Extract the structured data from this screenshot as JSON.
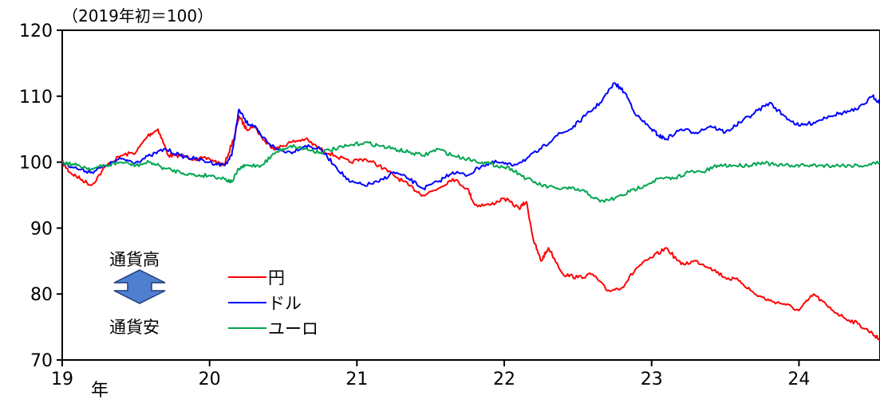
{
  "chart_data": {
    "type": "line",
    "unit_note": "（2019年初＝100）",
    "x_tick_labels": [
      "19",
      "20",
      "21",
      "22",
      "23",
      "24"
    ],
    "x_unit": "年",
    "xlim": [
      2019.0,
      2024.55
    ],
    "ylim": [
      70,
      120
    ],
    "y_ticks": [
      70,
      80,
      90,
      100,
      110,
      120
    ],
    "grid": false,
    "legend_position": "lower-left",
    "annotations": {
      "up_label": "通貨高",
      "down_label": "通貨安",
      "arrow_color": "#4f7fd0"
    },
    "series": [
      {
        "name": "円",
        "color": "#ff0000",
        "x": [
          2019.0,
          2019.05,
          2019.12,
          2019.2,
          2019.3,
          2019.4,
          2019.5,
          2019.58,
          2019.65,
          2019.72,
          2019.8,
          2019.9,
          2020.0,
          2020.1,
          2020.17,
          2020.2,
          2020.25,
          2020.3,
          2020.38,
          2020.45,
          2020.55,
          2020.65,
          2020.75,
          2020.85,
          2020.95,
          2021.05,
          2021.15,
          2021.25,
          2021.35,
          2021.45,
          2021.55,
          2021.65,
          2021.75,
          2021.8,
          2021.9,
          2022.0,
          2022.1,
          2022.15,
          2022.2,
          2022.25,
          2022.3,
          2022.4,
          2022.5,
          2022.6,
          2022.7,
          2022.8,
          2022.9,
          2023.0,
          2023.1,
          2023.2,
          2023.3,
          2023.4,
          2023.5,
          2023.6,
          2023.7,
          2023.8,
          2023.9,
          2024.0,
          2024.1,
          2024.2,
          2024.3,
          2024.4,
          2024.5,
          2024.55
        ],
        "values": [
          100,
          98.5,
          97.5,
          96.5,
          99.5,
          101,
          101.5,
          104,
          105,
          101,
          101,
          100.5,
          100.5,
          99.5,
          104,
          107,
          105,
          105.5,
          103,
          102,
          103,
          103.5,
          102,
          101,
          100,
          100.5,
          99.5,
          98,
          96.5,
          95,
          96,
          97.5,
          96,
          93.5,
          93.5,
          94.5,
          93,
          94,
          88,
          85,
          87,
          83,
          82.5,
          83,
          80.5,
          81,
          84,
          85.5,
          87,
          84.5,
          85,
          84,
          82.5,
          82,
          80,
          79,
          78.5,
          77.5,
          80,
          78,
          76.5,
          75.5,
          74,
          73
        ]
      },
      {
        "name": "ドル",
        "color": "#0000ff",
        "x": [
          2019.0,
          2019.1,
          2019.2,
          2019.3,
          2019.4,
          2019.5,
          2019.6,
          2019.7,
          2019.8,
          2019.9,
          2020.0,
          2020.1,
          2020.15,
          2020.2,
          2020.25,
          2020.3,
          2020.35,
          2020.45,
          2020.55,
          2020.65,
          2020.75,
          2020.85,
          2020.95,
          2021.05,
          2021.15,
          2021.25,
          2021.35,
          2021.45,
          2021.55,
          2021.65,
          2021.75,
          2021.85,
          2021.95,
          2022.05,
          2022.15,
          2022.25,
          2022.35,
          2022.45,
          2022.55,
          2022.65,
          2022.75,
          2022.82,
          2022.9,
          2023.0,
          2023.05,
          2023.1,
          2023.2,
          2023.3,
          2023.4,
          2023.5,
          2023.6,
          2023.7,
          2023.8,
          2023.9,
          2024.0,
          2024.1,
          2024.2,
          2024.3,
          2024.4,
          2024.5,
          2024.55
        ],
        "values": [
          100,
          99,
          98.5,
          99.5,
          100.5,
          100,
          101,
          102,
          101,
          100.5,
          100,
          99.5,
          101,
          108,
          106,
          105.5,
          104,
          102,
          101.5,
          102.5,
          102,
          99.5,
          97,
          96.5,
          97,
          98.5,
          97.5,
          96,
          97,
          98.5,
          98,
          99.5,
          100,
          99.5,
          100.5,
          102,
          104,
          105,
          107,
          109,
          112,
          110.5,
          107,
          105,
          104,
          103.5,
          105,
          104.5,
          105.5,
          104.5,
          106,
          107.5,
          109,
          107,
          105.5,
          106,
          107,
          107.5,
          108,
          110,
          109
        ]
      },
      {
        "name": "ユーロ",
        "color": "#00a651",
        "x": [
          2019.0,
          2019.1,
          2019.2,
          2019.3,
          2019.4,
          2019.5,
          2019.6,
          2019.7,
          2019.8,
          2019.9,
          2020.0,
          2020.1,
          2020.15,
          2020.2,
          2020.25,
          2020.35,
          2020.45,
          2020.55,
          2020.65,
          2020.75,
          2020.85,
          2020.95,
          2021.05,
          2021.15,
          2021.25,
          2021.35,
          2021.45,
          2021.55,
          2021.65,
          2021.75,
          2021.85,
          2021.95,
          2022.05,
          2022.15,
          2022.25,
          2022.35,
          2022.45,
          2022.55,
          2022.65,
          2022.75,
          2022.85,
          2022.95,
          2023.05,
          2023.15,
          2023.25,
          2023.35,
          2023.45,
          2023.55,
          2023.65,
          2023.75,
          2023.85,
          2023.95,
          2024.05,
          2024.15,
          2024.25,
          2024.35,
          2024.45,
          2024.55
        ],
        "values": [
          100,
          99.5,
          99,
          99.5,
          100,
          99.5,
          100,
          99,
          98.5,
          98,
          98,
          97.5,
          97,
          99,
          99.5,
          99.5,
          101.5,
          102.5,
          102,
          101.5,
          102,
          102.5,
          103,
          102.5,
          102,
          101.5,
          101,
          102,
          101,
          100.5,
          100,
          99.5,
          99,
          97.5,
          96.5,
          96,
          96,
          95.5,
          94,
          94.5,
          95.5,
          96.5,
          97.5,
          97.5,
          98.5,
          98.5,
          99.5,
          99.5,
          99.5,
          100,
          99.5,
          99.5,
          99.5,
          99.5,
          99.5,
          99.5,
          99.5,
          100
        ]
      }
    ]
  }
}
